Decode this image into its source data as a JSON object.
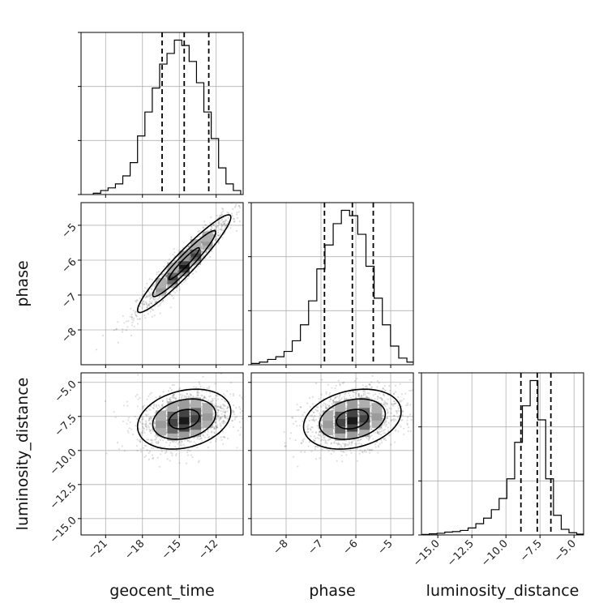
{
  "chart_data": {
    "type": "corner",
    "parameters": [
      "geocent_time",
      "phase",
      "luminosity_distance"
    ],
    "labels": {
      "x": [
        "geocent_time",
        "phase",
        "luminosity_distance"
      ],
      "y": [
        "",
        "phase",
        "luminosity_distance"
      ]
    },
    "ranges": {
      "geocent_time": [
        -23,
        -9.8
      ],
      "phase": [
        -9.0,
        -4.35
      ],
      "luminosity_distance": [
        -16.2,
        -4.3
      ]
    },
    "ticks": {
      "geocent_time": [
        -21,
        -18,
        -15,
        -12
      ],
      "phase": [
        -8,
        -7,
        -6,
        -5
      ],
      "luminosity_distance": [
        -15.0,
        -12.5,
        -10.0,
        -7.5,
        -5.0
      ]
    },
    "tick_labels": {
      "geocent_time": [
        "−21",
        "−18",
        "−15",
        "−12"
      ],
      "phase": [
        "−8",
        "−7",
        "−6",
        "−5"
      ],
      "luminosity_distance": [
        "−15.0",
        "−12.5",
        "−10.0",
        "−7.5",
        "−5.0"
      ]
    },
    "quantiles": {
      "geocent_time": [
        -16.4,
        -14.6,
        -12.6
      ],
      "phase": [
        -6.9,
        -6.1,
        -5.5
      ],
      "luminosity_distance": [
        -8.9,
        -7.7,
        -6.7
      ]
    },
    "histograms": {
      "geocent_time": {
        "edges_start": -22.0,
        "bin_width": 0.6,
        "counts": [
          0.5,
          1.5,
          2.5,
          4,
          7,
          12,
          22,
          31,
          40,
          49,
          53,
          58,
          56,
          50,
          42,
          31,
          21,
          10,
          4,
          1.5
        ]
      },
      "phase": {
        "edges_start": -9.0,
        "bin_width": 0.235,
        "counts": [
          0.5,
          1,
          2,
          3,
          5,
          9,
          15,
          24,
          36,
          45,
          53,
          58,
          56,
          49,
          37,
          25,
          15,
          7,
          2.5,
          1
        ]
      },
      "luminosity_distance": {
        "edges_start": -16.2,
        "bin_width": 0.57,
        "counts": [
          0.2,
          0.4,
          0.6,
          1,
          1.2,
          1.6,
          2.5,
          4,
          6,
          9,
          13,
          20,
          33,
          46,
          55,
          41,
          20,
          7,
          2,
          0.8,
          0.3
        ]
      }
    },
    "correlations": {
      "phase_vs_geocent_time": 0.95,
      "luminosity_distance_vs_geocent_time": 0.25,
      "luminosity_distance_vs_phase": 0.25
    },
    "grid": true
  }
}
